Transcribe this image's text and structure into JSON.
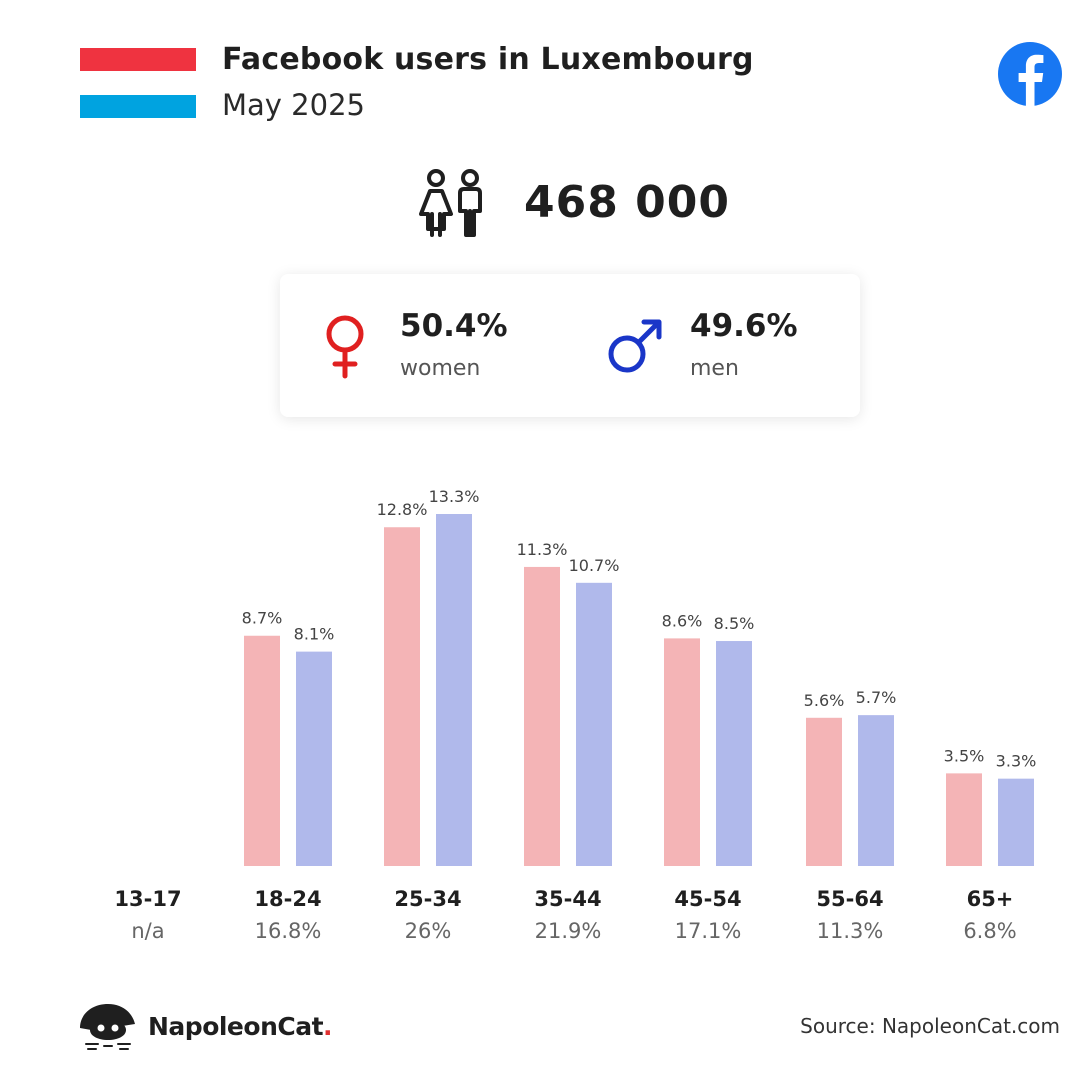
{
  "header": {
    "title": "Facebook users in Luxembourg",
    "subtitle": "May 2025",
    "flag_colors": [
      "#ef3340",
      "#ffffff",
      "#00a3e0"
    ],
    "brand_icon": "facebook-logo-icon",
    "brand_color": "#1877f2"
  },
  "total": {
    "icon": "users-icon",
    "value": "468 000"
  },
  "gender": {
    "women": {
      "icon": "female-symbol-icon",
      "pct": "50.4%",
      "label": "women",
      "color": "#e02020"
    },
    "men": {
      "icon": "male-symbol-icon",
      "pct": "49.6%",
      "label": "men",
      "color": "#1a36c8"
    }
  },
  "chart_data": {
    "type": "bar",
    "categories": [
      "13-17",
      "18-24",
      "25-34",
      "35-44",
      "45-54",
      "55-64",
      "65+"
    ],
    "category_totals": [
      "n/a",
      "16.8%",
      "26%",
      "21.9%",
      "17.1%",
      "11.3%",
      "6.8%"
    ],
    "series": [
      {
        "color": "#f4b4b6",
        "values": [
          null,
          8.7,
          12.8,
          11.3,
          8.6,
          5.6,
          3.5
        ],
        "labels": [
          "",
          "8.7%",
          "12.8%",
          "11.3%",
          "8.6%",
          "5.6%",
          "3.5%"
        ]
      },
      {
        "color": "#b0b9eb",
        "values": [
          null,
          8.1,
          13.3,
          10.7,
          8.5,
          5.7,
          3.3
        ],
        "labels": [
          "",
          "8.1%",
          "13.3%",
          "10.7%",
          "8.5%",
          "5.7%",
          "3.3%"
        ]
      }
    ],
    "ylim": [
      0,
      13.3
    ],
    "grid": false,
    "legend": "none"
  },
  "footer": {
    "brand_icon": "napoleoncat-logo-icon",
    "brand_name": "NapoleonCat",
    "brand_suffix": ".",
    "source": "Source: NapoleonCat.com"
  }
}
